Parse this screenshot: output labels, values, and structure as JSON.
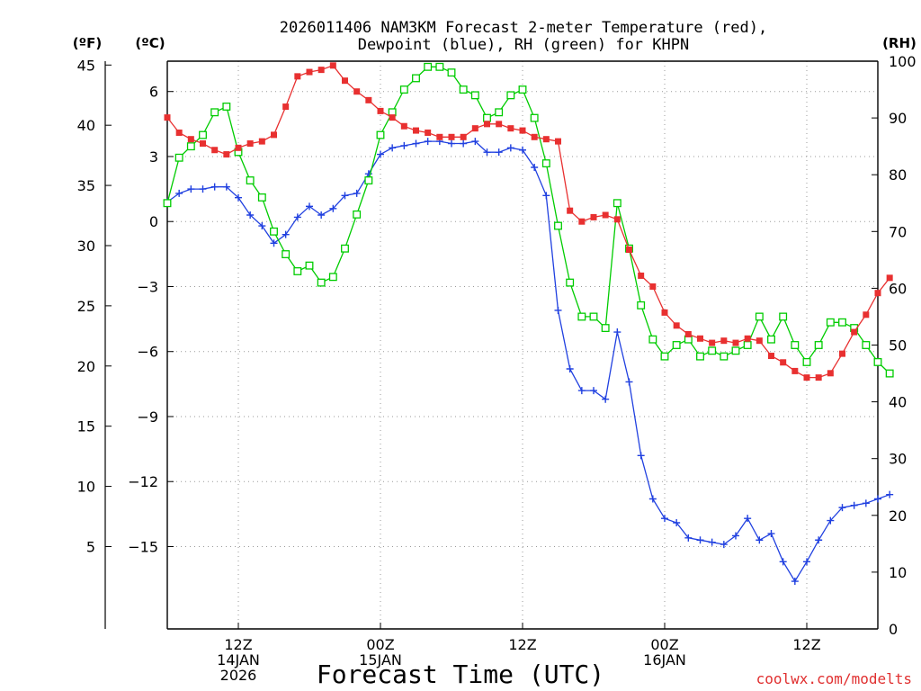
{
  "chart_data": {
    "type": "line",
    "title_line1": "2026011406 NAM3KM Forecast 2-meter Temperature (red),",
    "title_line2": "Dewpoint (blue), RH (green) for KHPN",
    "xlabel": "Forecast Time (UTC)",
    "credit": "coolwx.com/modelts",
    "unit_f": "(ºF)",
    "unit_c": "(ºC)",
    "unit_rh": "(RH)",
    "x_hours_range": [
      0,
      60
    ],
    "x_ticks": [
      {
        "hour": 6,
        "lines": [
          "12Z",
          "14JAN",
          "2026"
        ]
      },
      {
        "hour": 18,
        "lines": [
          "00Z",
          "15JAN"
        ]
      },
      {
        "hour": 30,
        "lines": [
          "12Z"
        ]
      },
      {
        "hour": 42,
        "lines": [
          "00Z",
          "16JAN"
        ]
      },
      {
        "hour": 54,
        "lines": [
          "12Z"
        ]
      }
    ],
    "y_left_c": {
      "range": [
        -18.8,
        7.4
      ],
      "ticks": [
        6,
        3,
        0,
        -3,
        -6,
        -9,
        -12,
        -15
      ],
      "labels": [
        "6",
        "3",
        "0",
        "−3",
        "−6",
        "−9",
        "−12",
        "−15"
      ]
    },
    "y_left_f": {
      "range": [
        -1.84,
        45.32
      ],
      "ticks": [
        45,
        40,
        35,
        30,
        25,
        20,
        15,
        10,
        5
      ],
      "labels": [
        "45",
        "40",
        "35",
        "30",
        "25",
        "20",
        "15",
        "10",
        "5"
      ]
    },
    "y_right_rh": {
      "range": [
        0,
        100
      ],
      "ticks": [
        100,
        90,
        80,
        70,
        60,
        50,
        40,
        30,
        20,
        10,
        0
      ],
      "labels": [
        "100",
        "90",
        "80",
        "70",
        "60",
        "50",
        "40",
        "30",
        "20",
        "10",
        "0"
      ]
    },
    "series": [
      {
        "name": "2-meter Temperature",
        "axis": "c",
        "color": "#e83030",
        "marker": "filled-square",
        "values": [
          4.8,
          4.1,
          3.8,
          3.6,
          3.3,
          3.1,
          3.4,
          3.6,
          3.7,
          4.0,
          5.3,
          6.7,
          6.9,
          7.0,
          7.2,
          6.5,
          6.0,
          5.6,
          5.1,
          4.8,
          4.4,
          4.2,
          4.1,
          3.9,
          3.9,
          3.9,
          4.3,
          4.5,
          4.5,
          4.3,
          4.2,
          3.9,
          3.8,
          3.7,
          0.5,
          0.0,
          0.2,
          0.3,
          0.1,
          -1.3,
          -2.5,
          -3.0,
          -4.2,
          -4.8,
          -5.2,
          -5.4,
          -5.6,
          -5.5,
          -5.6,
          -5.4,
          -5.5,
          -6.2,
          -6.5,
          -6.9,
          -7.2,
          -7.2,
          -7.0,
          -6.1,
          -5.1,
          -4.3,
          -3.3,
          -2.6
        ]
      },
      {
        "name": "Dewpoint",
        "axis": "c",
        "color": "#2040e0",
        "marker": "plus",
        "values": [
          0.9,
          1.3,
          1.5,
          1.5,
          1.6,
          1.6,
          1.1,
          0.3,
          -0.2,
          -1.0,
          -0.6,
          0.2,
          0.7,
          0.3,
          0.6,
          1.2,
          1.3,
          2.2,
          3.1,
          3.4,
          3.5,
          3.6,
          3.7,
          3.7,
          3.6,
          3.6,
          3.7,
          3.2,
          3.2,
          3.4,
          3.3,
          2.5,
          1.2,
          -4.1,
          -6.8,
          -7.8,
          -7.8,
          -8.2,
          -5.1,
          -7.4,
          -10.8,
          -12.8,
          -13.7,
          -13.9,
          -14.6,
          -14.7,
          -14.8,
          -14.9,
          -14.5,
          -13.7,
          -14.7,
          -14.4,
          -15.7,
          -16.6,
          -15.7,
          -14.7,
          -13.8,
          -13.2,
          -13.1,
          -13.0,
          -12.8,
          -12.6
        ]
      },
      {
        "name": "RH",
        "axis": "rh",
        "color": "#00cc00",
        "marker": "open-square",
        "values": [
          75,
          83,
          85,
          87,
          91,
          92,
          84,
          79,
          76,
          70,
          66,
          63,
          64,
          61,
          62,
          67,
          73,
          79,
          87,
          91,
          95,
          97,
          99,
          99,
          98,
          95,
          94,
          90,
          91,
          94,
          95,
          90,
          82,
          71,
          61,
          55,
          55,
          53,
          75,
          67,
          57,
          51,
          48,
          50,
          51,
          48,
          49,
          48,
          49,
          50,
          55,
          51,
          55,
          50,
          47,
          50,
          54,
          54,
          53,
          50,
          47,
          45
        ]
      }
    ]
  }
}
